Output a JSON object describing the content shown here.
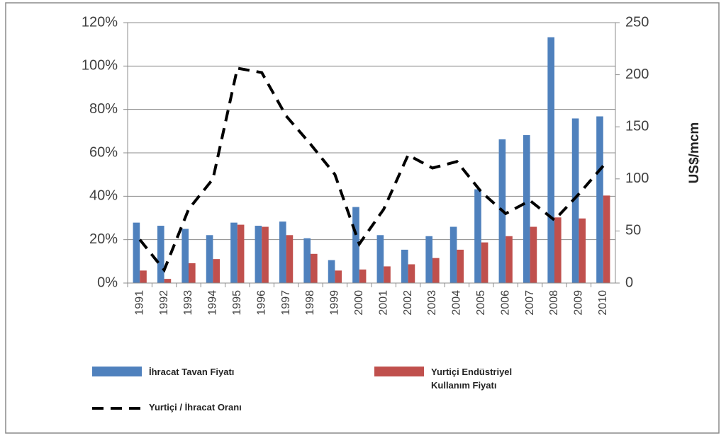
{
  "chart_data": {
    "type": "bar_line",
    "y2_label": "US$/mcm",
    "categories": [
      "1991",
      "1992",
      "1993",
      "1994",
      "1995",
      "1996",
      "1997",
      "1998",
      "1999",
      "2000",
      "2001",
      "2002",
      "2003",
      "2004",
      "2005",
      "2006",
      "2007",
      "2008",
      "2009",
      "2010"
    ],
    "series": [
      {
        "name": "İhracat Tavan Fiyatı",
        "type": "bar",
        "axis": "y2",
        "color": "#4f81bd",
        "values": [
          58,
          55,
          52,
          46,
          58,
          55,
          59,
          43,
          22,
          73,
          46,
          32,
          45,
          54,
          90,
          138,
          142,
          236,
          158,
          160
        ]
      },
      {
        "name": "Yurtiçi Endüstriyel Kullanım Fiyatı",
        "type": "bar",
        "axis": "y2",
        "color": "#c0504d",
        "values": [
          12,
          4,
          19,
          23,
          56,
          54,
          46,
          28,
          12,
          13,
          16,
          18,
          24,
          32,
          39,
          45,
          54,
          63,
          62,
          84
        ]
      },
      {
        "name": "Yurtiçi / İhracat Oranı",
        "type": "line",
        "axis": "y",
        "color": "#000000",
        "values": [
          20,
          6,
          34,
          48,
          99,
          97,
          77,
          64,
          50,
          18,
          34,
          59,
          53,
          56,
          42,
          32,
          38,
          29,
          41,
          54
        ]
      }
    ],
    "ylim": [
      0,
      120
    ],
    "yticks": [
      {
        "value": 0,
        "label": "0%"
      },
      {
        "value": 20,
        "label": "20%"
      },
      {
        "value": 40,
        "label": "40%"
      },
      {
        "value": 60,
        "label": "60%"
      },
      {
        "value": 80,
        "label": "80%"
      },
      {
        "value": 100,
        "label": "100%"
      },
      {
        "value": 120,
        "label": "120%"
      }
    ],
    "y2lim": [
      0,
      250
    ],
    "y2ticks": [
      0,
      50,
      100,
      150,
      200,
      250
    ],
    "grid": true
  }
}
